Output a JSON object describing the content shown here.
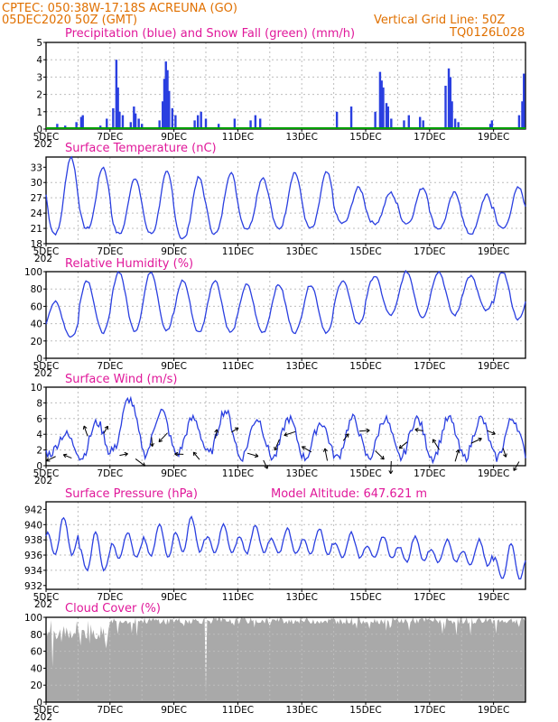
{
  "header": {
    "line1": "CPTEC:   050:38W-17:18S  ACREUNA (GO)",
    "line2": "05DEC2020 50Z (GMT)",
    "grid_note": "Vertical Grid Line: 50Z",
    "code": "TQ0126L028"
  },
  "x_axis": {
    "labels": [
      "5DEC",
      "7DEC",
      "9DEC",
      "11DEC",
      "13DEC",
      "15DEC",
      "17DEC",
      "19DEC"
    ],
    "year_stub": "202",
    "start": "5DEC",
    "end": "20DEC"
  },
  "colors": {
    "blue": "#2a3fe0",
    "green": "#00a000",
    "black": "#000000",
    "gray": "#a9a9a9",
    "grid": "#bdbdbd"
  },
  "chart_data": [
    {
      "type": "bar",
      "title": "Precipitation (blue) and Snow Fall (green) (mm/h)",
      "ylim": [
        0,
        5
      ],
      "yticks": [
        0,
        1,
        2,
        3,
        4,
        5
      ],
      "series": [
        {
          "name": "Precipitation",
          "color": "#2a3fe0"
        },
        {
          "name": "Snow Fall",
          "color": "#00a000"
        }
      ],
      "events": [
        {
          "day": 5.35,
          "value": 0.3
        },
        {
          "day": 5.6,
          "value": 0.2
        },
        {
          "day": 5.95,
          "value": 0.4
        },
        {
          "day": 6.1,
          "value": 0.7
        },
        {
          "day": 6.15,
          "value": 0.8
        },
        {
          "day": 6.7,
          "value": 0.2
        },
        {
          "day": 6.9,
          "value": 0.6
        },
        {
          "day": 7.1,
          "value": 1.2
        },
        {
          "day": 7.2,
          "value": 4.0
        },
        {
          "day": 7.25,
          "value": 2.4
        },
        {
          "day": 7.3,
          "value": 1.0
        },
        {
          "day": 7.4,
          "value": 0.8
        },
        {
          "day": 7.65,
          "value": 0.4
        },
        {
          "day": 7.75,
          "value": 1.3
        },
        {
          "day": 7.8,
          "value": 0.9
        },
        {
          "day": 7.9,
          "value": 0.6
        },
        {
          "day": 8.0,
          "value": 0.3
        },
        {
          "day": 8.55,
          "value": 0.5
        },
        {
          "day": 8.65,
          "value": 1.6
        },
        {
          "day": 8.7,
          "value": 2.9
        },
        {
          "day": 8.75,
          "value": 3.9
        },
        {
          "day": 8.8,
          "value": 3.4
        },
        {
          "day": 8.85,
          "value": 2.2
        },
        {
          "day": 8.95,
          "value": 1.2
        },
        {
          "day": 9.05,
          "value": 0.8
        },
        {
          "day": 9.65,
          "value": 0.5
        },
        {
          "day": 9.75,
          "value": 0.8
        },
        {
          "day": 9.85,
          "value": 1.0
        },
        {
          "day": 10.0,
          "value": 0.6
        },
        {
          "day": 10.4,
          "value": 0.3
        },
        {
          "day": 10.9,
          "value": 0.6
        },
        {
          "day": 11.4,
          "value": 0.5
        },
        {
          "day": 11.55,
          "value": 0.8
        },
        {
          "day": 11.7,
          "value": 0.6
        },
        {
          "day": 12.95,
          "value": 0.1
        },
        {
          "day": 14.1,
          "value": 1.0
        },
        {
          "day": 14.55,
          "value": 1.3
        },
        {
          "day": 15.3,
          "value": 1.0
        },
        {
          "day": 15.45,
          "value": 3.3
        },
        {
          "day": 15.5,
          "value": 2.8
        },
        {
          "day": 15.55,
          "value": 2.4
        },
        {
          "day": 15.65,
          "value": 1.5
        },
        {
          "day": 15.7,
          "value": 1.3
        },
        {
          "day": 15.8,
          "value": 0.6
        },
        {
          "day": 16.2,
          "value": 0.5
        },
        {
          "day": 16.35,
          "value": 0.8
        },
        {
          "day": 16.7,
          "value": 0.7
        },
        {
          "day": 16.8,
          "value": 0.5
        },
        {
          "day": 17.5,
          "value": 2.5
        },
        {
          "day": 17.6,
          "value": 3.5
        },
        {
          "day": 17.65,
          "value": 3.0
        },
        {
          "day": 17.7,
          "value": 1.6
        },
        {
          "day": 17.8,
          "value": 0.6
        },
        {
          "day": 17.9,
          "value": 0.4
        },
        {
          "day": 18.9,
          "value": 0.3
        },
        {
          "day": 18.95,
          "value": 0.5
        },
        {
          "day": 19.8,
          "value": 0.8
        },
        {
          "day": 19.9,
          "value": 1.6
        },
        {
          "day": 19.95,
          "value": 3.2
        }
      ]
    },
    {
      "type": "line",
      "title": "Surface Temperature (nC)",
      "ylim": [
        18,
        35
      ],
      "yticks": [
        18,
        21,
        24,
        27,
        30,
        33
      ],
      "cycle": {
        "maxima": [
          35,
          33,
          31,
          32,
          31,
          32,
          31,
          32,
          32,
          29,
          28,
          29,
          28,
          27.5,
          29
        ],
        "minima": [
          20,
          21,
          20,
          20,
          19,
          20,
          21,
          21,
          21,
          22,
          22,
          22,
          21,
          20,
          21
        ]
      }
    },
    {
      "type": "line",
      "title": "Relative Humidity (%)",
      "ylim": [
        0,
        100
      ],
      "yticks": [
        0,
        20,
        40,
        60,
        80,
        100
      ],
      "cycle": {
        "maxima": [
          65,
          90,
          100,
          100,
          90,
          90,
          85,
          85,
          85,
          90,
          95,
          100,
          100,
          95,
          100
        ],
        "minima": [
          25,
          30,
          32,
          32,
          30,
          30,
          30,
          30,
          30,
          40,
          50,
          48,
          50,
          55,
          45
        ]
      }
    },
    {
      "type": "line",
      "title": "Surface Wind (m/s)",
      "ylim": [
        0,
        10
      ],
      "yticks": [
        0,
        2,
        4,
        6,
        8,
        10
      ],
      "cycle": {
        "maxima": [
          4,
          5.5,
          8.5,
          7,
          6,
          7,
          6,
          6,
          5.5,
          6,
          6,
          6,
          6,
          6,
          6
        ],
        "minima": [
          1.5,
          1,
          2,
          1.5,
          1.5,
          1.5,
          1,
          1,
          1,
          1,
          1,
          1,
          1,
          1,
          1
        ]
      }
    },
    {
      "type": "line",
      "title": "Surface Pressure (hPa)",
      "annotation": "Model Altitude: 647.621 m",
      "ylim": [
        931.5,
        943
      ],
      "yticks": [
        932,
        934,
        936,
        938,
        940,
        942
      ],
      "cycle": {
        "maxima": [
          941,
          939,
          939,
          940,
          941,
          940,
          940,
          939.5,
          939.5,
          939,
          938.5,
          938.5,
          938,
          938,
          937.5
        ],
        "minima": [
          935,
          933,
          935,
          935,
          935.5,
          935.5,
          935.5,
          935.5,
          935.5,
          935,
          935,
          934.5,
          934.5,
          934,
          932
        ]
      }
    },
    {
      "type": "area",
      "title": "Cloud Cover (%)",
      "ylim": [
        0,
        100
      ],
      "yticks": [
        0,
        20,
        40,
        60,
        80,
        100
      ]
    }
  ]
}
